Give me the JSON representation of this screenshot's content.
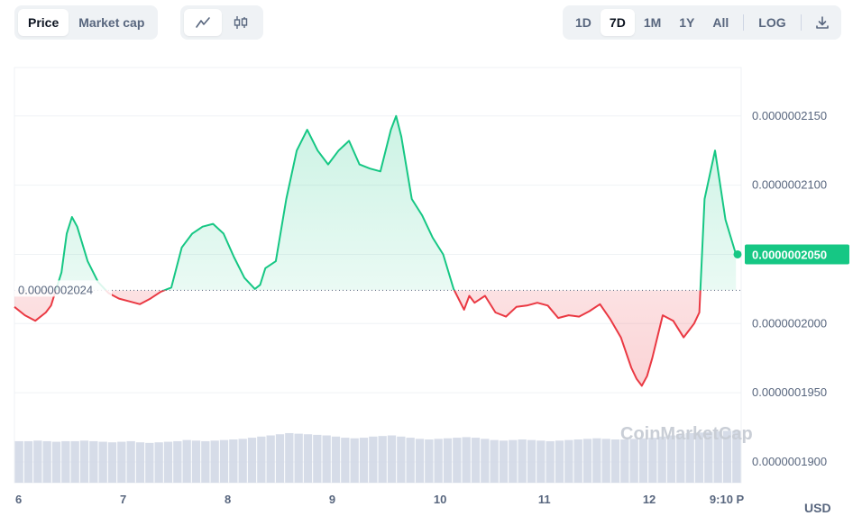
{
  "tabs": [
    {
      "label": "Price",
      "active": true
    },
    {
      "label": "Market cap",
      "active": false
    }
  ],
  "chart_modes": [
    {
      "icon": "line-chart-icon",
      "active": true
    },
    {
      "icon": "candlestick-icon",
      "active": false
    }
  ],
  "ranges": [
    {
      "label": "1D",
      "active": false
    },
    {
      "label": "7D",
      "active": true
    },
    {
      "label": "1M",
      "active": false
    },
    {
      "label": "1Y",
      "active": false
    },
    {
      "label": "All",
      "active": false
    }
  ],
  "log_label": "LOG",
  "download_icon": "download-icon",
  "currency": "USD",
  "watermark": "CoinMarketCap",
  "colors": {
    "up": "#16c784",
    "down": "#ea3943",
    "grid": "#eff2f5",
    "volume": "#cfd6e4"
  },
  "chart_data": {
    "type": "area",
    "baseline": {
      "value": 2.024e-07,
      "label": "0.0000002024"
    },
    "ylim": [
      1.885e-07,
      2.185e-07
    ],
    "yticks": [
      {
        "value": 2.15e-07,
        "label": "0.0000002150"
      },
      {
        "value": 2.1e-07,
        "label": "0.0000002100"
      },
      {
        "value": 2e-07,
        "label": "0.0000002000"
      },
      {
        "value": 1.95e-07,
        "label": "0.0000001950"
      },
      {
        "value": 1.9e-07,
        "label": "0.0000001900"
      }
    ],
    "current": {
      "value": 2.05e-07,
      "label": "0.0000002050"
    },
    "xticks": [
      {
        "day": 6,
        "label": "6"
      },
      {
        "day": 7,
        "label": "7"
      },
      {
        "day": 8,
        "label": "8"
      },
      {
        "day": 9,
        "label": "9"
      },
      {
        "day": 10,
        "label": "10"
      },
      {
        "day": 11,
        "label": "11"
      },
      {
        "day": 12,
        "label": "12"
      },
      {
        "day": 12.83,
        "label": "9:10 P"
      }
    ],
    "x": [
      6.0,
      6.1,
      6.2,
      6.3,
      6.35,
      6.45,
      6.5,
      6.55,
      6.6,
      6.7,
      6.8,
      6.9,
      7.0,
      7.1,
      7.2,
      7.3,
      7.4,
      7.5,
      7.6,
      7.7,
      7.8,
      7.9,
      8.0,
      8.1,
      8.2,
      8.3,
      8.35,
      8.4,
      8.5,
      8.6,
      8.7,
      8.8,
      8.9,
      9.0,
      9.1,
      9.2,
      9.3,
      9.4,
      9.5,
      9.6,
      9.65,
      9.7,
      9.8,
      9.9,
      10.0,
      10.1,
      10.2,
      10.3,
      10.35,
      10.4,
      10.5,
      10.6,
      10.7,
      10.8,
      10.9,
      11.0,
      11.1,
      11.2,
      11.3,
      11.4,
      11.5,
      11.6,
      11.7,
      11.8,
      11.9,
      11.95,
      12.0,
      12.05,
      12.1,
      12.2,
      12.3,
      12.4,
      12.5,
      12.55,
      12.6,
      12.7,
      12.8,
      12.9
    ],
    "values": [
      2.012e-07,
      2.006e-07,
      2.002e-07,
      2.008e-07,
      2.013e-07,
      2.037e-07,
      2.065e-07,
      2.077e-07,
      2.07e-07,
      2.045e-07,
      2.03e-07,
      2.022e-07,
      2.018e-07,
      2.016e-07,
      2.014e-07,
      2.018e-07,
      2.023e-07,
      2.026e-07,
      2.055e-07,
      2.065e-07,
      2.07e-07,
      2.072e-07,
      2.065e-07,
      2.048e-07,
      2.033e-07,
      2.025e-07,
      2.028e-07,
      2.04e-07,
      2.045e-07,
      2.09e-07,
      2.125e-07,
      2.14e-07,
      2.125e-07,
      2.115e-07,
      2.125e-07,
      2.132e-07,
      2.115e-07,
      2.112e-07,
      2.11e-07,
      2.14e-07,
      2.15e-07,
      2.135e-07,
      2.09e-07,
      2.078e-07,
      2.062e-07,
      2.05e-07,
      2.025e-07,
      2.01e-07,
      2.02e-07,
      2.015e-07,
      2.02e-07,
      2.008e-07,
      2.005e-07,
      2.012e-07,
      2.013e-07,
      2.015e-07,
      2.013e-07,
      2.004e-07,
      2.006e-07,
      2.005e-07,
      2.009e-07,
      2.014e-07,
      2.003e-07,
      1.99e-07,
      1.968e-07,
      1.96e-07,
      1.955e-07,
      1.962e-07,
      1.975e-07,
      2.006e-07,
      2.002e-07,
      1.99e-07,
      2e-07,
      2.008e-07,
      2.09e-07,
      2.125e-07,
      2.075e-07,
      2.05e-07
    ],
    "volume": [
      0.72,
      0.72,
      0.73,
      0.72,
      0.71,
      0.72,
      0.72,
      0.73,
      0.72,
      0.71,
      0.7,
      0.71,
      0.72,
      0.7,
      0.69,
      0.7,
      0.71,
      0.72,
      0.74,
      0.73,
      0.72,
      0.73,
      0.74,
      0.75,
      0.76,
      0.78,
      0.8,
      0.82,
      0.84,
      0.86,
      0.85,
      0.84,
      0.83,
      0.82,
      0.8,
      0.78,
      0.77,
      0.78,
      0.8,
      0.81,
      0.82,
      0.8,
      0.78,
      0.76,
      0.75,
      0.76,
      0.77,
      0.78,
      0.79,
      0.78,
      0.76,
      0.74,
      0.73,
      0.74,
      0.75,
      0.74,
      0.73,
      0.72,
      0.73,
      0.74,
      0.75,
      0.76,
      0.77,
      0.76,
      0.75,
      0.75,
      0.76,
      0.77,
      0.78,
      0.8,
      0.82,
      0.84,
      0.86,
      0.87,
      0.88,
      0.89,
      0.9,
      0.9
    ],
    "grid": true
  }
}
